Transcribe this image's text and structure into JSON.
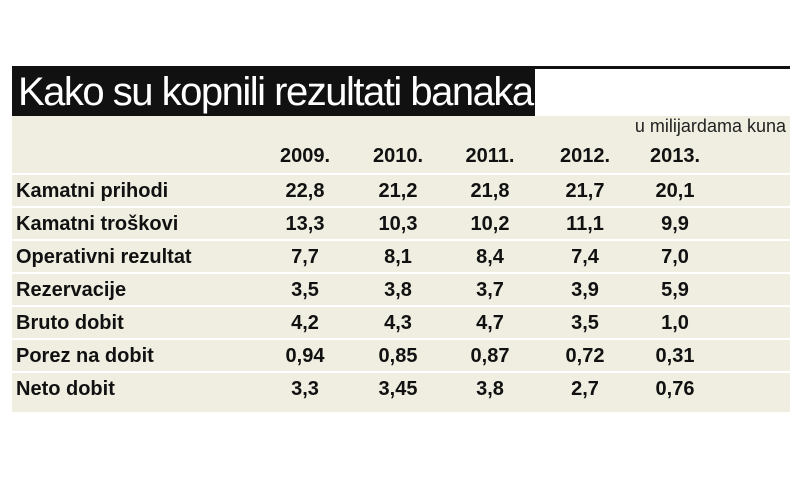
{
  "header": {
    "title": "Kako su kopnili rezultati banaka",
    "unit": "u milijardama kuna"
  },
  "table": {
    "columns": [
      "2009.",
      "2010.",
      "2011.",
      "2012.",
      "2013."
    ],
    "rows": [
      {
        "label": "Kamatni prihodi",
        "values": [
          "22,8",
          "21,2",
          "21,8",
          "21,7",
          "20,1"
        ]
      },
      {
        "label": "Kamatni troškovi",
        "values": [
          "13,3",
          "10,3",
          "10,2",
          "11,1",
          "9,9"
        ]
      },
      {
        "label": "Operativni rezultat",
        "values": [
          "7,7",
          "8,1",
          "8,4",
          "7,4",
          "7,0"
        ]
      },
      {
        "label": "Rezervacije",
        "values": [
          "3,5",
          "3,8",
          "3,7",
          "3,9",
          "5,9"
        ]
      },
      {
        "label": "Bruto dobit",
        "values": [
          "4,2",
          "4,3",
          "4,7",
          "3,5",
          "1,0"
        ]
      },
      {
        "label": "Porez na dobit",
        "values": [
          "0,94",
          "0,85",
          "0,87",
          "0,72",
          "0,31"
        ]
      },
      {
        "label": "Neto dobit",
        "values": [
          "3,3",
          "3,45",
          "3,8",
          "2,7",
          "0,76"
        ]
      }
    ]
  }
}
